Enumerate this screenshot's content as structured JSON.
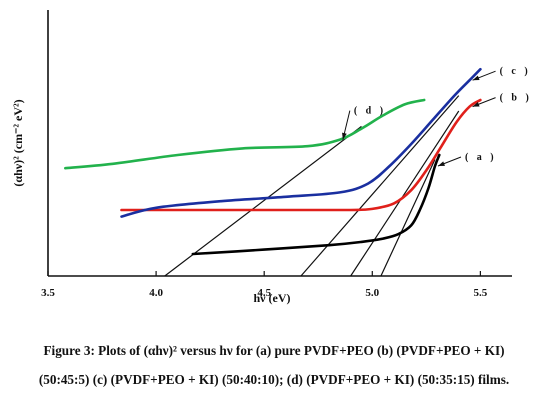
{
  "chart_data": {
    "type": "line",
    "title": "",
    "xlabel": "hν (eV)",
    "ylabel": "(αhν)² (cm⁻² eV²)",
    "xlim": [
      3.5,
      5.6
    ],
    "ylim": [
      0,
      1
    ],
    "x_ticks": [
      "3.5",
      "4.0",
      "4.5",
      "5.0",
      "5.5"
    ],
    "grid": false,
    "series": [
      {
        "name": "( a )",
        "color": "#000000",
        "x": [
          4.17,
          4.5,
          4.8,
          4.95,
          5.05,
          5.12,
          5.18,
          5.22,
          5.26,
          5.29,
          5.31
        ],
        "y": [
          0.1,
          0.12,
          0.14,
          0.155,
          0.17,
          0.19,
          0.23,
          0.3,
          0.4,
          0.5,
          0.55
        ]
      },
      {
        "name": "( b )",
        "color": "#e0201b",
        "x": [
          3.84,
          4.2,
          4.6,
          4.9,
          5.0,
          5.1,
          5.18,
          5.25,
          5.32,
          5.39,
          5.45,
          5.5
        ],
        "y": [
          0.3,
          0.3,
          0.3,
          0.3,
          0.305,
          0.33,
          0.39,
          0.48,
          0.59,
          0.7,
          0.77,
          0.8
        ]
      },
      {
        "name": "( c )",
        "color": "#1a2fa0",
        "x": [
          3.84,
          4.0,
          4.3,
          4.6,
          4.85,
          4.98,
          5.08,
          5.18,
          5.28,
          5.38,
          5.45,
          5.5
        ],
        "y": [
          0.27,
          0.31,
          0.34,
          0.36,
          0.38,
          0.42,
          0.5,
          0.6,
          0.71,
          0.82,
          0.89,
          0.94
        ]
      },
      {
        "name": "( d )",
        "color": "#22b24c",
        "x": [
          3.58,
          3.8,
          4.1,
          4.4,
          4.7,
          4.85,
          4.95,
          5.05,
          5.15,
          5.24
        ],
        "y": [
          0.49,
          0.51,
          0.55,
          0.58,
          0.59,
          0.62,
          0.67,
          0.73,
          0.78,
          0.8
        ]
      }
    ],
    "tangent_lines": [
      {
        "series": "( a )",
        "x": [
          5.04,
          5.29
        ],
        "y": [
          0.0,
          0.53
        ]
      },
      {
        "series": "( b )",
        "x": [
          4.9,
          5.4
        ],
        "y": [
          0.0,
          0.75
        ]
      },
      {
        "series": "( c )",
        "x": [
          4.67,
          5.4
        ],
        "y": [
          0.0,
          0.82
        ]
      },
      {
        "series": "( d )",
        "x": [
          4.04,
          4.95
        ],
        "y": [
          0.0,
          0.68
        ]
      }
    ]
  },
  "caption": {
    "line1": "Figure 3: Plots of (αhν)² versus hν for (a) pure PVDF+PEO (b) (PVDF+PEO + KI)",
    "line2": "(50:45:5) (c) (PVDF+PEO + KI) (50:40:10); (d) (PVDF+PEO + KI) (50:35:15) films."
  }
}
